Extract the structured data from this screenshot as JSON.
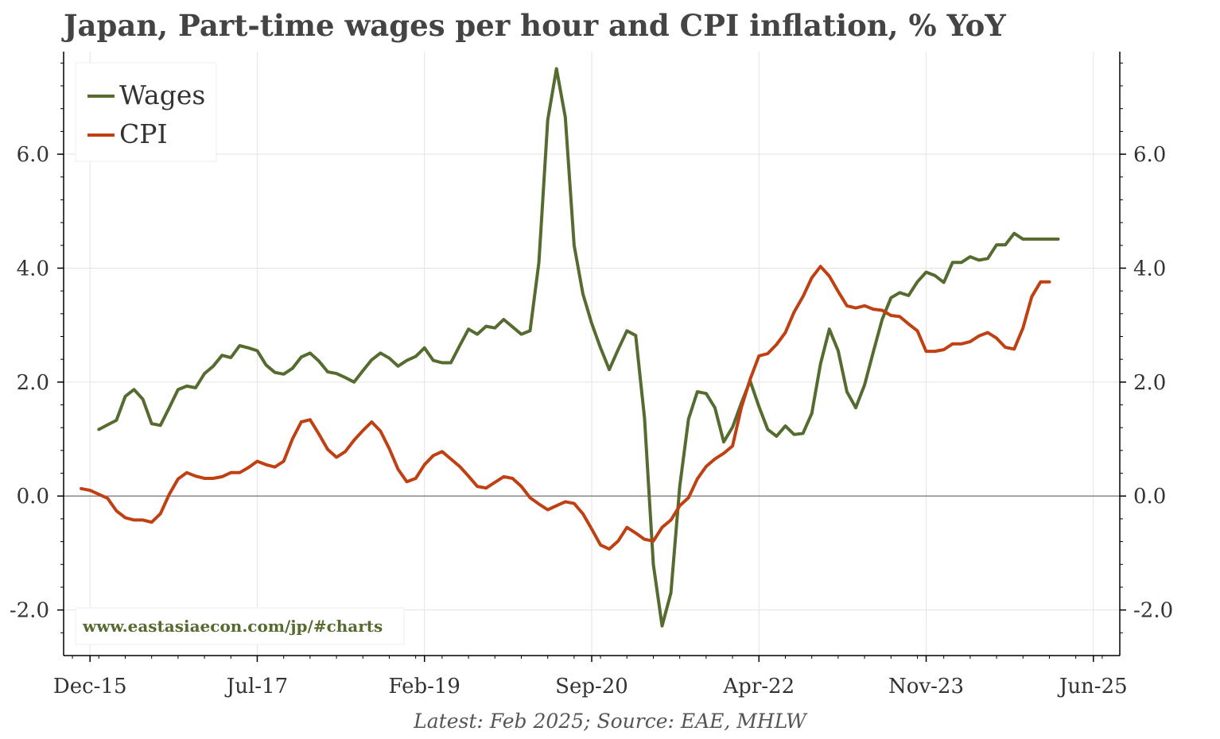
{
  "colors": {
    "wages": "#556b2f",
    "cpi": "#bf4012",
    "grid": "#e3e3e3",
    "zero_line": "#888888",
    "axis": "#000000",
    "watermark": "#556b2f"
  },
  "footer": "Latest: Feb 2025; Source: EAE, MHLW",
  "chart_data": {
    "type": "line",
    "title": "Japan, Part-time wages per hour and CPI inflation, % YoY",
    "xlabel": "",
    "ylabel": "",
    "x_ticks": [
      "Dec-15",
      "Jul-17",
      "Feb-19",
      "Sep-20",
      "Apr-22",
      "Nov-23",
      "Jun-25"
    ],
    "y_ticks": [
      "-2.0",
      "0.0",
      "2.0",
      "4.0",
      "6.0"
    ],
    "ylim": [
      -2.8,
      7.8
    ],
    "xlim": [
      "2015-09",
      "2025-09"
    ],
    "grid": true,
    "legend": "top-left",
    "watermark": "www.eastasiaecon.com/jp/#charts",
    "series": [
      {
        "name": "Wages",
        "color_key": "wages",
        "points": [
          [
            "2016-01",
            1.17
          ],
          [
            "2016-02",
            1.25
          ],
          [
            "2016-03",
            1.33
          ],
          [
            "2016-04",
            1.75
          ],
          [
            "2016-05",
            1.87
          ],
          [
            "2016-06",
            1.7
          ],
          [
            "2016-07",
            1.27
          ],
          [
            "2016-08",
            1.24
          ],
          [
            "2016-09",
            1.55
          ],
          [
            "2016-10",
            1.87
          ],
          [
            "2016-11",
            1.93
          ],
          [
            "2016-12",
            1.9
          ],
          [
            "2017-01",
            2.15
          ],
          [
            "2017-02",
            2.28
          ],
          [
            "2017-03",
            2.47
          ],
          [
            "2017-04",
            2.43
          ],
          [
            "2017-05",
            2.64
          ],
          [
            "2017-06",
            2.6
          ],
          [
            "2017-07",
            2.55
          ],
          [
            "2017-08",
            2.3
          ],
          [
            "2017-09",
            2.17
          ],
          [
            "2017-10",
            2.14
          ],
          [
            "2017-11",
            2.24
          ],
          [
            "2017-12",
            2.44
          ],
          [
            "2018-01",
            2.51
          ],
          [
            "2018-02",
            2.37
          ],
          [
            "2018-03",
            2.18
          ],
          [
            "2018-04",
            2.15
          ],
          [
            "2018-05",
            2.08
          ],
          [
            "2018-06",
            2.0
          ],
          [
            "2018-07",
            2.2
          ],
          [
            "2018-08",
            2.39
          ],
          [
            "2018-09",
            2.51
          ],
          [
            "2018-10",
            2.42
          ],
          [
            "2018-11",
            2.28
          ],
          [
            "2018-12",
            2.38
          ],
          [
            "2019-01",
            2.45
          ],
          [
            "2019-02",
            2.6
          ],
          [
            "2019-03",
            2.38
          ],
          [
            "2019-04",
            2.34
          ],
          [
            "2019-05",
            2.34
          ],
          [
            "2019-06",
            2.64
          ],
          [
            "2019-07",
            2.93
          ],
          [
            "2019-08",
            2.84
          ],
          [
            "2019-09",
            2.98
          ],
          [
            "2019-10",
            2.95
          ],
          [
            "2019-11",
            3.1
          ],
          [
            "2019-12",
            2.97
          ],
          [
            "2020-01",
            2.84
          ],
          [
            "2020-02",
            2.9
          ],
          [
            "2020-03",
            4.1
          ],
          [
            "2020-04",
            6.6
          ],
          [
            "2020-05",
            7.5
          ],
          [
            "2020-06",
            6.65
          ],
          [
            "2020-07",
            4.4
          ],
          [
            "2020-08",
            3.55
          ],
          [
            "2020-09",
            3.03
          ],
          [
            "2020-10",
            2.6
          ],
          [
            "2020-11",
            2.22
          ],
          [
            "2020-12",
            2.57
          ],
          [
            "2021-01",
            2.9
          ],
          [
            "2021-02",
            2.82
          ],
          [
            "2021-03",
            1.37
          ],
          [
            "2021-04",
            -1.2
          ],
          [
            "2021-05",
            -2.28
          ],
          [
            "2021-06",
            -1.7
          ],
          [
            "2021-07",
            0.17
          ],
          [
            "2021-08",
            1.35
          ],
          [
            "2021-09",
            1.83
          ],
          [
            "2021-10",
            1.8
          ],
          [
            "2021-11",
            1.55
          ],
          [
            "2021-12",
            0.95
          ],
          [
            "2022-01",
            1.21
          ],
          [
            "2022-02",
            1.63
          ],
          [
            "2022-03",
            2.02
          ],
          [
            "2022-04",
            1.57
          ],
          [
            "2022-05",
            1.17
          ],
          [
            "2022-06",
            1.05
          ],
          [
            "2022-07",
            1.23
          ],
          [
            "2022-08",
            1.08
          ],
          [
            "2022-09",
            1.1
          ],
          [
            "2022-10",
            1.45
          ],
          [
            "2022-11",
            2.32
          ],
          [
            "2022-12",
            2.93
          ],
          [
            "2023-01",
            2.55
          ],
          [
            "2023-02",
            1.83
          ],
          [
            "2023-03",
            1.55
          ],
          [
            "2023-04",
            1.95
          ],
          [
            "2023-05",
            2.53
          ],
          [
            "2023-06",
            3.1
          ],
          [
            "2023-07",
            3.48
          ],
          [
            "2023-08",
            3.57
          ],
          [
            "2023-09",
            3.52
          ],
          [
            "2023-10",
            3.76
          ],
          [
            "2023-11",
            3.93
          ],
          [
            "2023-12",
            3.87
          ],
          [
            "2024-01",
            3.75
          ],
          [
            "2024-02",
            4.1
          ],
          [
            "2024-03",
            4.1
          ],
          [
            "2024-04",
            4.2
          ],
          [
            "2024-05",
            4.14
          ],
          [
            "2024-06",
            4.17
          ],
          [
            "2024-07",
            4.41
          ],
          [
            "2024-08",
            4.41
          ],
          [
            "2024-09",
            4.61
          ],
          [
            "2024-10",
            4.51
          ],
          [
            "2024-11",
            4.51
          ],
          [
            "2024-12",
            4.51
          ],
          [
            "2025-01",
            4.51
          ],
          [
            "2025-02",
            4.51
          ]
        ]
      },
      {
        "name": "CPI",
        "color_key": "cpi",
        "points": [
          [
            "2015-11",
            0.13
          ],
          [
            "2015-12",
            0.1
          ],
          [
            "2016-01",
            0.03
          ],
          [
            "2016-02",
            -0.04
          ],
          [
            "2016-03",
            -0.26
          ],
          [
            "2016-04",
            -0.38
          ],
          [
            "2016-05",
            -0.42
          ],
          [
            "2016-06",
            -0.42
          ],
          [
            "2016-07",
            -0.46
          ],
          [
            "2016-08",
            -0.31
          ],
          [
            "2016-09",
            0.03
          ],
          [
            "2016-10",
            0.3
          ],
          [
            "2016-11",
            0.41
          ],
          [
            "2016-12",
            0.35
          ],
          [
            "2017-01",
            0.31
          ],
          [
            "2017-02",
            0.31
          ],
          [
            "2017-03",
            0.34
          ],
          [
            "2017-04",
            0.41
          ],
          [
            "2017-05",
            0.41
          ],
          [
            "2017-06",
            0.5
          ],
          [
            "2017-07",
            0.61
          ],
          [
            "2017-08",
            0.55
          ],
          [
            "2017-09",
            0.51
          ],
          [
            "2017-10",
            0.61
          ],
          [
            "2017-11",
            1.0
          ],
          [
            "2017-12",
            1.3
          ],
          [
            "2018-01",
            1.34
          ],
          [
            "2018-02",
            1.09
          ],
          [
            "2018-03",
            0.82
          ],
          [
            "2018-04",
            0.68
          ],
          [
            "2018-05",
            0.78
          ],
          [
            "2018-06",
            0.98
          ],
          [
            "2018-07",
            1.15
          ],
          [
            "2018-08",
            1.3
          ],
          [
            "2018-09",
            1.14
          ],
          [
            "2018-10",
            0.83
          ],
          [
            "2018-11",
            0.47
          ],
          [
            "2018-12",
            0.25
          ],
          [
            "2019-01",
            0.31
          ],
          [
            "2019-02",
            0.55
          ],
          [
            "2019-03",
            0.71
          ],
          [
            "2019-04",
            0.78
          ],
          [
            "2019-05",
            0.65
          ],
          [
            "2019-06",
            0.52
          ],
          [
            "2019-07",
            0.35
          ],
          [
            "2019-08",
            0.17
          ],
          [
            "2019-09",
            0.14
          ],
          [
            "2019-10",
            0.24
          ],
          [
            "2019-11",
            0.34
          ],
          [
            "2019-12",
            0.31
          ],
          [
            "2020-01",
            0.17
          ],
          [
            "2020-02",
            -0.03
          ],
          [
            "2020-03",
            -0.14
          ],
          [
            "2020-04",
            -0.24
          ],
          [
            "2020-05",
            -0.17
          ],
          [
            "2020-06",
            -0.1
          ],
          [
            "2020-07",
            -0.13
          ],
          [
            "2020-08",
            -0.31
          ],
          [
            "2020-09",
            -0.58
          ],
          [
            "2020-10",
            -0.86
          ],
          [
            "2020-11",
            -0.93
          ],
          [
            "2020-12",
            -0.79
          ],
          [
            "2021-01",
            -0.55
          ],
          [
            "2021-02",
            -0.65
          ],
          [
            "2021-03",
            -0.76
          ],
          [
            "2021-04",
            -0.79
          ],
          [
            "2021-05",
            -0.55
          ],
          [
            "2021-06",
            -0.42
          ],
          [
            "2021-07",
            -0.17
          ],
          [
            "2021-08",
            -0.03
          ],
          [
            "2021-09",
            0.3
          ],
          [
            "2021-10",
            0.52
          ],
          [
            "2021-11",
            0.65
          ],
          [
            "2021-12",
            0.75
          ],
          [
            "2022-01",
            0.88
          ],
          [
            "2022-02",
            1.55
          ],
          [
            "2022-03",
            2.05
          ],
          [
            "2022-04",
            2.46
          ],
          [
            "2022-05",
            2.5
          ],
          [
            "2022-06",
            2.66
          ],
          [
            "2022-07",
            2.87
          ],
          [
            "2022-08",
            3.23
          ],
          [
            "2022-09",
            3.5
          ],
          [
            "2022-10",
            3.83
          ],
          [
            "2022-11",
            4.03
          ],
          [
            "2022-12",
            3.86
          ],
          [
            "2023-01",
            3.59
          ],
          [
            "2023-02",
            3.34
          ],
          [
            "2023-03",
            3.3
          ],
          [
            "2023-04",
            3.34
          ],
          [
            "2023-05",
            3.28
          ],
          [
            "2023-06",
            3.26
          ],
          [
            "2023-07",
            3.17
          ],
          [
            "2023-08",
            3.15
          ],
          [
            "2023-09",
            3.02
          ],
          [
            "2023-10",
            2.9
          ],
          [
            "2023-11",
            2.54
          ],
          [
            "2023-12",
            2.54
          ],
          [
            "2024-01",
            2.57
          ],
          [
            "2024-02",
            2.67
          ],
          [
            "2024-03",
            2.67
          ],
          [
            "2024-04",
            2.71
          ],
          [
            "2024-05",
            2.81
          ],
          [
            "2024-06",
            2.87
          ],
          [
            "2024-07",
            2.77
          ],
          [
            "2024-08",
            2.61
          ],
          [
            "2024-09",
            2.58
          ],
          [
            "2024-10",
            2.95
          ],
          [
            "2024-11",
            3.5
          ],
          [
            "2024-12",
            3.76
          ],
          [
            "2025-01",
            3.76
          ]
        ]
      }
    ]
  }
}
